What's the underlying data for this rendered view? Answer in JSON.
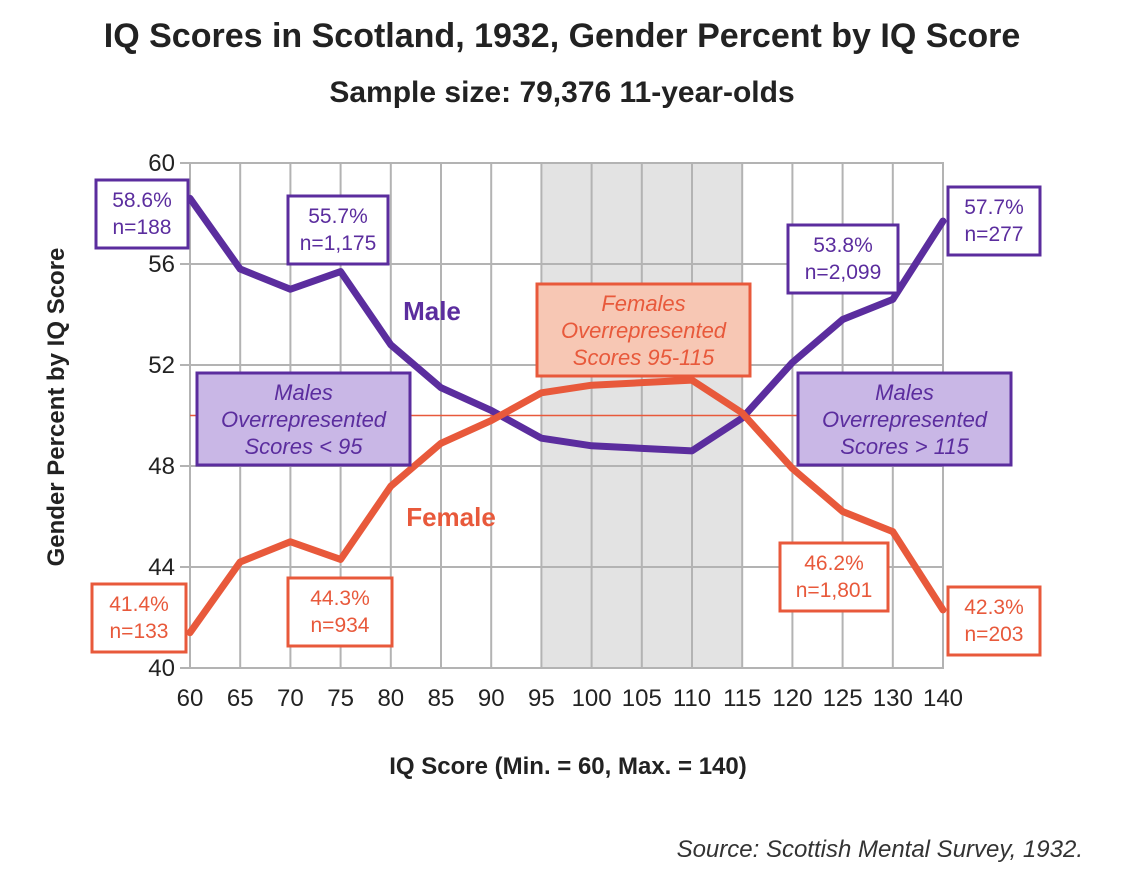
{
  "chart_data": {
    "type": "line",
    "title": "IQ Scores in Scotland, 1932, Gender Percent by IQ Score",
    "subtitle": "Sample size: 79,376 11-year-olds",
    "xlabel": "IQ Score (Min. = 60, Max. = 140)",
    "ylabel": "Gender Percent by IQ Score",
    "source": "Source: Scottish Mental Survey, 1932.",
    "x": [
      60,
      65,
      70,
      75,
      80,
      85,
      90,
      95,
      100,
      105,
      110,
      115,
      120,
      125,
      130,
      140
    ],
    "x_tick_labels": [
      "60",
      "65",
      "70",
      "75",
      "80",
      "85",
      "90",
      "95",
      "100",
      "105",
      "110",
      "115",
      "120",
      "125",
      "130",
      "140"
    ],
    "y_ticks": [
      40,
      44,
      48,
      52,
      56,
      60
    ],
    "y_tick_labels": [
      "40",
      "44",
      "48",
      "52",
      "56",
      "60"
    ],
    "ylim": [
      40,
      60
    ],
    "reference_line": 50,
    "shaded_range": [
      95,
      115
    ],
    "colors": {
      "male": "#5b2d9e",
      "female": "#e8593b",
      "shade": "#e3e3e3",
      "grid": "#b3b3b3"
    },
    "series": [
      {
        "name": "Male",
        "values": [
          58.6,
          55.8,
          55.0,
          55.7,
          52.8,
          51.1,
          50.2,
          49.1,
          48.8,
          48.7,
          48.6,
          49.9,
          52.1,
          53.8,
          54.6,
          57.7
        ]
      },
      {
        "name": "Female",
        "values": [
          41.4,
          44.2,
          45.0,
          44.3,
          47.2,
          48.9,
          49.8,
          50.9,
          51.2,
          51.3,
          51.4,
          50.1,
          47.9,
          46.2,
          45.4,
          42.3
        ]
      }
    ],
    "annotations": [
      {
        "series": "male",
        "lines": [
          "58.6%",
          "n=188"
        ]
      },
      {
        "series": "male",
        "lines": [
          "55.7%",
          "n=1,175"
        ]
      },
      {
        "series": "male",
        "lines": [
          "53.8%",
          "n=2,099"
        ]
      },
      {
        "series": "male",
        "lines": [
          "57.7%",
          "n=277"
        ]
      },
      {
        "series": "female",
        "lines": [
          "41.4%",
          "n=133"
        ]
      },
      {
        "series": "female",
        "lines": [
          "44.3%",
          "n=934"
        ]
      },
      {
        "series": "female",
        "lines": [
          "46.2%",
          "n=1,801"
        ]
      },
      {
        "series": "female",
        "lines": [
          "42.3%",
          "n=203"
        ]
      }
    ],
    "region_labels": [
      {
        "series": "male",
        "lines": [
          "Males",
          "Overrepresented",
          "Scores < 95"
        ]
      },
      {
        "series": "female",
        "lines": [
          "Females",
          "Overrepresented",
          "Scores 95-115"
        ]
      },
      {
        "series": "male",
        "lines": [
          "Males",
          "Overrepresented",
          "Scores > 115"
        ]
      }
    ]
  }
}
